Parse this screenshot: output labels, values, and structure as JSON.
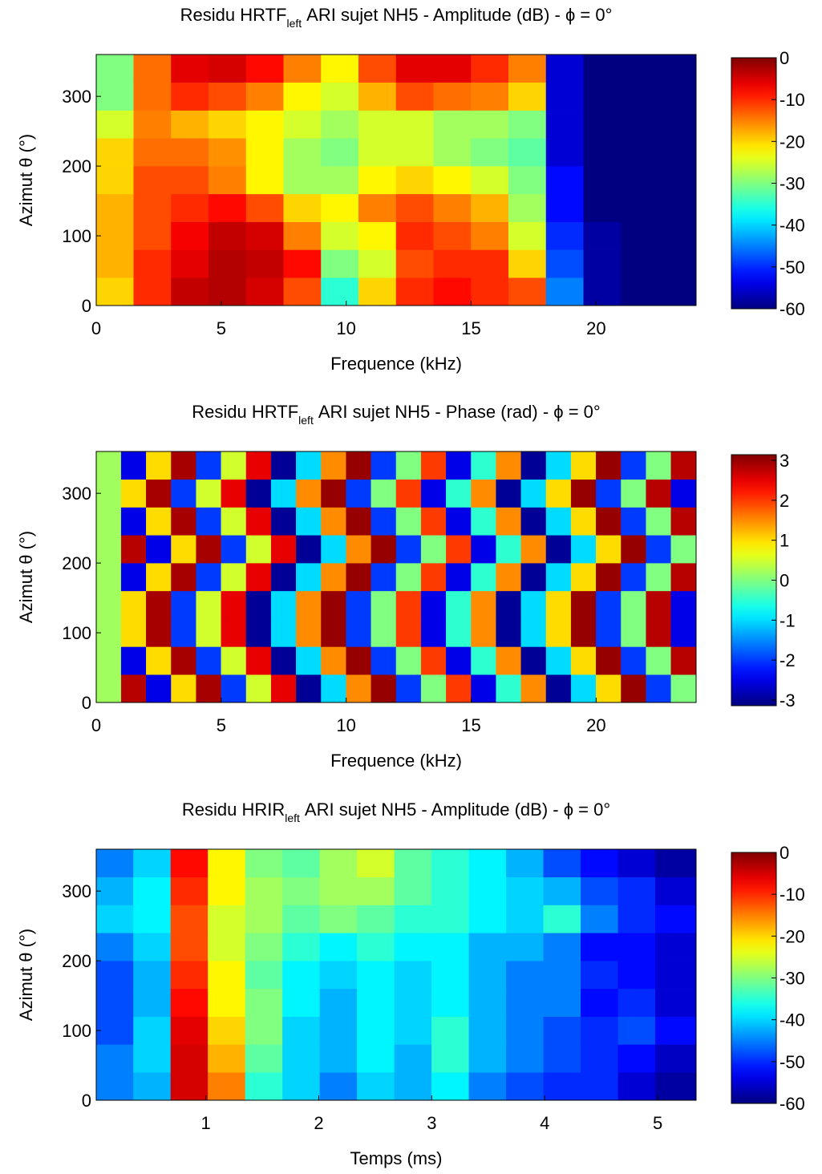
{
  "chart_data": [
    {
      "type": "heatmap",
      "title": {
        "text": "Residu HRTF",
        "subscript": "left",
        "suffix": "ARI sujet NH5 - Amplitude (dB) - ϕ = 0°"
      },
      "xlabel": "Frequence (kHz)",
      "ylabel": "Azimut θ (°)",
      "xlim": [
        0,
        24
      ],
      "xticks": [
        0,
        5,
        10,
        15,
        20
      ],
      "ylim": [
        0,
        360
      ],
      "yticks": [
        0,
        100,
        200,
        300
      ],
      "zlim": [
        -60,
        0
      ],
      "zticks": [
        0,
        -10,
        -20,
        -30,
        -40,
        -50,
        -60
      ],
      "colormap": "jet",
      "xbins": [
        0,
        1.5,
        3,
        4.5,
        6,
        7.5,
        9,
        10.5,
        12,
        13.5,
        15,
        16.5,
        18,
        19.5,
        21,
        22.5,
        24
      ],
      "ybins": [
        0,
        40,
        80,
        120,
        160,
        200,
        240,
        280,
        320,
        360
      ],
      "z": [
        [
          -20,
          -10,
          -4,
          -3,
          -5,
          -12,
          -35,
          -20,
          -10,
          -8,
          -10,
          -12,
          -45,
          -58,
          -60,
          -60
        ],
        [
          -18,
          -10,
          -6,
          -3,
          -4,
          -8,
          -30,
          -25,
          -12,
          -10,
          -10,
          -20,
          -48,
          -58,
          -60,
          -60
        ],
        [
          -18,
          -12,
          -7,
          -4,
          -5,
          -15,
          -25,
          -22,
          -10,
          -12,
          -15,
          -25,
          -50,
          -58,
          -60,
          -60
        ],
        [
          -18,
          -12,
          -10,
          -8,
          -12,
          -20,
          -22,
          -15,
          -12,
          -15,
          -18,
          -28,
          -52,
          -60,
          -60,
          -60
        ],
        [
          -20,
          -12,
          -12,
          -15,
          -22,
          -28,
          -28,
          -22,
          -20,
          -22,
          -25,
          -30,
          -52,
          -60,
          -60,
          -60
        ],
        [
          -20,
          -14,
          -14,
          -16,
          -22,
          -28,
          -30,
          -25,
          -25,
          -28,
          -30,
          -32,
          -55,
          -60,
          -60,
          -60
        ],
        [
          -25,
          -15,
          -18,
          -20,
          -22,
          -25,
          -28,
          -25,
          -25,
          -28,
          -28,
          -30,
          -55,
          -60,
          -60,
          -60
        ],
        [
          -30,
          -14,
          -10,
          -12,
          -15,
          -22,
          -25,
          -18,
          -12,
          -14,
          -15,
          -20,
          -55,
          -60,
          -60,
          -60
        ],
        [
          -30,
          -14,
          -6,
          -5,
          -8,
          -15,
          -22,
          -12,
          -6,
          -6,
          -10,
          -15,
          -55,
          -60,
          -60,
          -60
        ]
      ]
    },
    {
      "type": "heatmap",
      "title": {
        "text": "Residu HRTF",
        "subscript": "left",
        "suffix": "ARI sujet NH5 - Phase (rad) - ϕ = 0°"
      },
      "xlabel": "Frequence (kHz)",
      "ylabel": "Azimut θ (°)",
      "xlim": [
        0,
        24
      ],
      "xticks": [
        0,
        5,
        10,
        15,
        20
      ],
      "ylim": [
        0,
        360
      ],
      "yticks": [
        0,
        100,
        200,
        300
      ],
      "zlim": [
        -3.1416,
        3.1416
      ],
      "zticks": [
        3,
        2,
        1,
        0,
        -1,
        -2,
        -3
      ],
      "colormap": "jet",
      "xbins": [
        0,
        1,
        2,
        3,
        4,
        5,
        6,
        7,
        8,
        9,
        10,
        11,
        12,
        13,
        14,
        15,
        16,
        17,
        18,
        19,
        20,
        21,
        22,
        23,
        24
      ],
      "ybins": [
        0,
        40,
        80,
        120,
        160,
        200,
        240,
        280,
        320,
        360
      ],
      "z": [
        [
          0.2,
          2.8,
          -2.5,
          1,
          2.9,
          -2,
          0.5,
          2.5,
          -3,
          -1,
          1.5,
          3,
          -2,
          0,
          2,
          -2.5,
          -0.5,
          1.5,
          -3,
          -1,
          1,
          3,
          -2,
          0
        ],
        [
          0.2,
          -2.5,
          1,
          2.9,
          -2,
          0.5,
          2.5,
          -3,
          -1,
          1.5,
          3,
          -2,
          0,
          2,
          -2.5,
          -0.5,
          1.5,
          -3,
          -1,
          1,
          3,
          -2,
          0,
          2.8
        ],
        [
          0.2,
          1,
          2.9,
          -2,
          0.5,
          2.5,
          -3,
          -1,
          1.5,
          3,
          -2,
          0,
          2,
          -2.5,
          -0.5,
          1.5,
          -3,
          -1,
          1,
          3,
          -2,
          0,
          2.8,
          -2.5
        ],
        [
          0.2,
          1,
          2.9,
          -2,
          0.5,
          2.5,
          -3,
          -1,
          1.5,
          3,
          -2,
          0,
          2,
          -2.5,
          -0.5,
          1.5,
          -3,
          -1,
          1,
          3,
          -2,
          0,
          2.8,
          -2.5
        ],
        [
          0.2,
          -2.5,
          1,
          2.9,
          -2,
          0.5,
          2.5,
          -3,
          -1,
          1.5,
          3,
          -2,
          0,
          2,
          -2.5,
          -0.5,
          1.5,
          -3,
          -1,
          1,
          3,
          -2,
          0,
          2.8
        ],
        [
          0.2,
          2.8,
          -2.5,
          1,
          2.9,
          -2,
          0.5,
          2.5,
          -3,
          -1,
          1.5,
          3,
          -2,
          0,
          2,
          -2.5,
          -0.5,
          1.5,
          -3,
          -1,
          1,
          3,
          -2,
          0
        ],
        [
          0.2,
          -2.5,
          1,
          2.9,
          -2,
          0.5,
          2.5,
          -3,
          -1,
          1.5,
          3,
          -2,
          0,
          2,
          -2.5,
          -0.5,
          1.5,
          -3,
          -1,
          1,
          3,
          -2,
          0,
          2.8
        ],
        [
          0.2,
          1,
          2.9,
          -2,
          0.5,
          2.5,
          -3,
          -1,
          1.5,
          3,
          -2,
          0,
          2,
          -2.5,
          -0.5,
          1.5,
          -3,
          -1,
          1,
          3,
          -2,
          0,
          2.8,
          -2.5
        ],
        [
          0.2,
          -2.5,
          1,
          2.9,
          -2,
          0.5,
          2.5,
          -3,
          -1,
          1.5,
          3,
          -2,
          0,
          2,
          -2.5,
          -0.5,
          1.5,
          -3,
          -1,
          1,
          3,
          -2,
          0,
          2.8
        ]
      ]
    },
    {
      "type": "heatmap",
      "title": {
        "text": "Residu HRIR",
        "subscript": "left",
        "suffix": "ARI sujet NH5 - Amplitude (dB) - ϕ = 0°"
      },
      "xlabel": "Temps (ms)",
      "ylabel": "Azimut θ (°)",
      "xlim": [
        0.03,
        5.34
      ],
      "xticks": [
        1,
        2,
        3,
        4,
        5
      ],
      "ylim": [
        0,
        360
      ],
      "yticks": [
        0,
        100,
        200,
        300
      ],
      "zlim": [
        -60,
        0
      ],
      "zticks": [
        0,
        -10,
        -20,
        -30,
        -40,
        -50,
        -60
      ],
      "colormap": "jet",
      "xbins": [
        0.03,
        0.36,
        0.69,
        1.02,
        1.35,
        1.68,
        2.01,
        2.34,
        2.67,
        3.0,
        3.33,
        3.66,
        3.99,
        4.32,
        4.65,
        4.98,
        5.34
      ],
      "ybins": [
        0,
        40,
        80,
        120,
        160,
        200,
        240,
        280,
        320,
        360
      ],
      "z": [
        [
          -45,
          -42,
          -5,
          -15,
          -35,
          -40,
          -45,
          -40,
          -42,
          -38,
          -45,
          -48,
          -50,
          -50,
          -55,
          -58
        ],
        [
          -45,
          -40,
          -5,
          -18,
          -32,
          -40,
          -42,
          -38,
          -42,
          -35,
          -42,
          -45,
          -48,
          -50,
          -52,
          -56
        ],
        [
          -48,
          -40,
          -6,
          -20,
          -30,
          -40,
          -42,
          -38,
          -40,
          -35,
          -42,
          -45,
          -48,
          -50,
          -48,
          -52
        ],
        [
          -48,
          -42,
          -8,
          -22,
          -30,
          -38,
          -42,
          -38,
          -40,
          -38,
          -42,
          -45,
          -45,
          -52,
          -50,
          -55
        ],
        [
          -48,
          -42,
          -10,
          -22,
          -32,
          -38,
          -40,
          -38,
          -40,
          -38,
          -42,
          -45,
          -45,
          -50,
          -52,
          -55
        ],
        [
          -45,
          -40,
          -12,
          -25,
          -30,
          -35,
          -38,
          -35,
          -38,
          -38,
          -42,
          -42,
          -45,
          -52,
          -52,
          -55
        ],
        [
          -40,
          -38,
          -12,
          -25,
          -28,
          -32,
          -30,
          -32,
          -35,
          -35,
          -38,
          -40,
          -35,
          -45,
          -50,
          -52
        ],
        [
          -42,
          -38,
          -10,
          -22,
          -28,
          -30,
          -28,
          -28,
          -32,
          -35,
          -38,
          -40,
          -42,
          -48,
          -50,
          -55
        ],
        [
          -45,
          -40,
          -8,
          -22,
          -30,
          -32,
          -28,
          -25,
          -32,
          -35,
          -38,
          -42,
          -48,
          -52,
          -55,
          -58
        ]
      ]
    }
  ]
}
